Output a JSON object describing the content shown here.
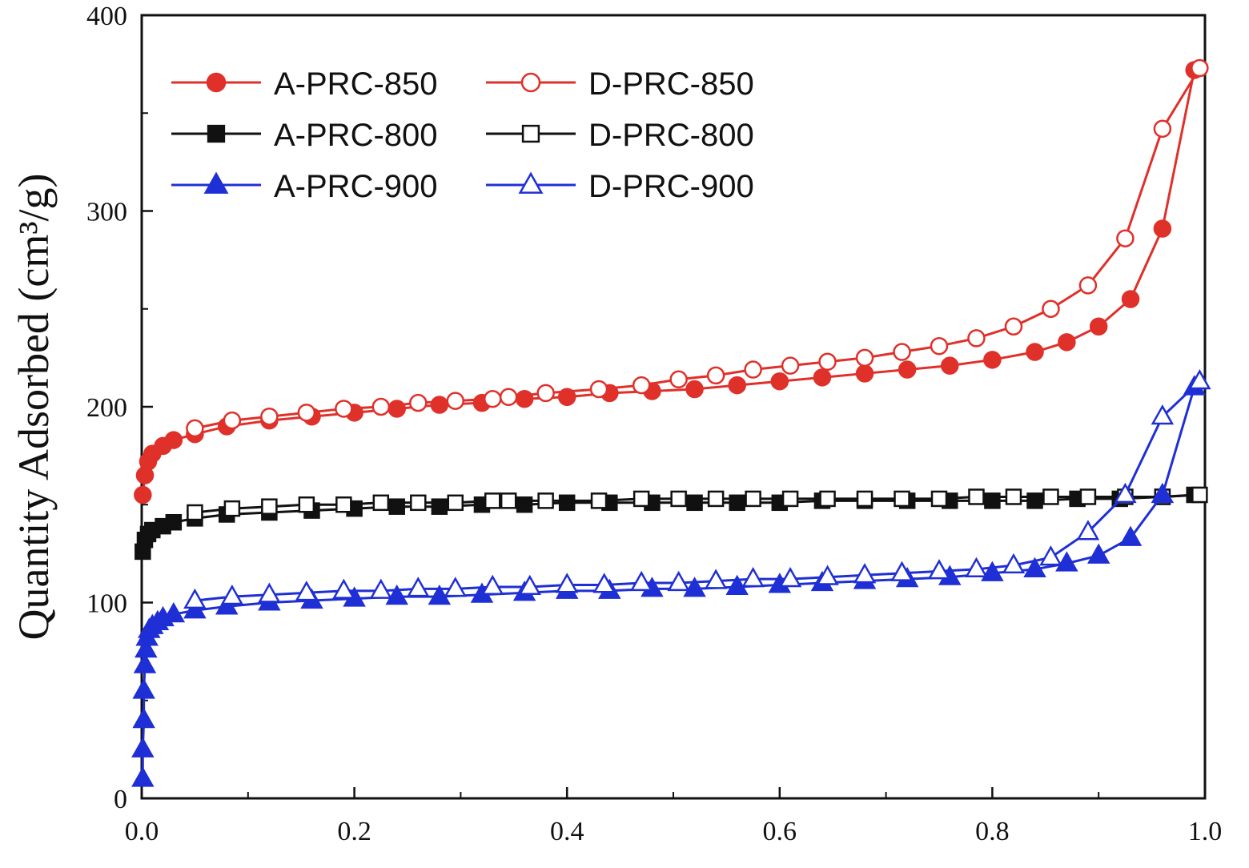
{
  "chart_data": {
    "type": "line",
    "title": "",
    "xlabel": "",
    "ylabel": "Quantity Adsorbed (cm³/g)",
    "xlim": [
      0.0,
      1.0
    ],
    "ylim": [
      0,
      400
    ],
    "x_ticks": [
      "0.0",
      "0.2",
      "0.4",
      "0.6",
      "0.8",
      "1.0"
    ],
    "y_ticks": [
      "0",
      "100",
      "200",
      "300",
      "400"
    ],
    "grid": false,
    "legend_position": "top-left",
    "legend_columns": 2,
    "series": [
      {
        "name": "A-PRC-850",
        "color": "#e0302a",
        "marker": "circle",
        "filled": true,
        "x": [
          0.001,
          0.003,
          0.006,
          0.01,
          0.02,
          0.03,
          0.05,
          0.08,
          0.12,
          0.16,
          0.2,
          0.24,
          0.28,
          0.32,
          0.36,
          0.4,
          0.44,
          0.48,
          0.52,
          0.56,
          0.6,
          0.64,
          0.68,
          0.72,
          0.76,
          0.8,
          0.84,
          0.87,
          0.9,
          0.93,
          0.96,
          0.99
        ],
        "y": [
          155,
          165,
          172,
          176,
          180,
          183,
          186,
          190,
          193,
          195,
          197,
          199,
          201,
          202,
          204,
          205,
          207,
          208,
          209,
          211,
          213,
          215,
          217,
          219,
          221,
          224,
          228,
          233,
          241,
          255,
          291,
          372
        ]
      },
      {
        "name": "D-PRC-850",
        "color": "#e0302a",
        "marker": "circle",
        "filled": false,
        "x": [
          0.05,
          0.085,
          0.12,
          0.155,
          0.19,
          0.225,
          0.26,
          0.295,
          0.33,
          0.345,
          0.38,
          0.43,
          0.47,
          0.505,
          0.54,
          0.575,
          0.61,
          0.645,
          0.68,
          0.715,
          0.75,
          0.785,
          0.82,
          0.855,
          0.89,
          0.925,
          0.96,
          0.995
        ],
        "y": [
          189,
          193,
          195,
          197,
          199,
          200,
          202,
          203,
          204,
          205,
          207,
          209,
          211,
          214,
          216,
          219,
          221,
          223,
          225,
          228,
          231,
          235,
          241,
          250,
          262,
          286,
          342,
          373
        ]
      },
      {
        "name": "A-PRC-800",
        "color": "#111111",
        "marker": "square",
        "filled": true,
        "x": [
          0.001,
          0.003,
          0.006,
          0.01,
          0.02,
          0.03,
          0.05,
          0.08,
          0.12,
          0.16,
          0.2,
          0.24,
          0.28,
          0.32,
          0.36,
          0.4,
          0.44,
          0.48,
          0.52,
          0.56,
          0.6,
          0.64,
          0.68,
          0.72,
          0.76,
          0.8,
          0.84,
          0.88,
          0.92,
          0.96,
          0.99
        ],
        "y": [
          126,
          132,
          135,
          137,
          139,
          141,
          143,
          145,
          146,
          147,
          148,
          149,
          149,
          150,
          150,
          151,
          151,
          151,
          151,
          151,
          151,
          152,
          152,
          152,
          152,
          152,
          152,
          153,
          153,
          154,
          155
        ]
      },
      {
        "name": "D-PRC-800",
        "color": "#111111",
        "marker": "square",
        "filled": false,
        "x": [
          0.05,
          0.085,
          0.12,
          0.155,
          0.19,
          0.225,
          0.26,
          0.295,
          0.33,
          0.345,
          0.38,
          0.43,
          0.47,
          0.505,
          0.54,
          0.575,
          0.61,
          0.645,
          0.68,
          0.715,
          0.75,
          0.785,
          0.82,
          0.855,
          0.89,
          0.925,
          0.96,
          0.995
        ],
        "y": [
          146,
          148,
          149,
          150,
          150,
          151,
          151,
          151,
          152,
          152,
          152,
          152,
          153,
          153,
          153,
          153,
          153,
          153,
          153,
          153,
          153,
          154,
          154,
          154,
          154,
          154,
          154,
          155
        ]
      },
      {
        "name": "A-PRC-900",
        "color": "#1f2fd6",
        "marker": "triangle",
        "filled": true,
        "x": [
          0.001,
          0.001,
          0.002,
          0.002,
          0.003,
          0.004,
          0.005,
          0.007,
          0.01,
          0.015,
          0.02,
          0.03,
          0.05,
          0.08,
          0.12,
          0.16,
          0.2,
          0.24,
          0.28,
          0.32,
          0.36,
          0.4,
          0.44,
          0.48,
          0.52,
          0.56,
          0.6,
          0.64,
          0.68,
          0.72,
          0.76,
          0.8,
          0.84,
          0.87,
          0.9,
          0.93,
          0.96,
          0.99
        ],
        "y": [
          10,
          25,
          40,
          55,
          68,
          76,
          82,
          86,
          88,
          90,
          92,
          94,
          96,
          98,
          100,
          101,
          102,
          103,
          103,
          104,
          105,
          106,
          106,
          107,
          107,
          108,
          109,
          110,
          111,
          112,
          113,
          115,
          117,
          120,
          124,
          133,
          155,
          210
        ]
      },
      {
        "name": "D-PRC-900",
        "color": "#1f2fd6",
        "marker": "triangle",
        "filled": false,
        "x": [
          0.05,
          0.085,
          0.12,
          0.155,
          0.19,
          0.225,
          0.26,
          0.295,
          0.33,
          0.365,
          0.4,
          0.435,
          0.47,
          0.505,
          0.54,
          0.575,
          0.61,
          0.645,
          0.68,
          0.715,
          0.75,
          0.785,
          0.82,
          0.855,
          0.89,
          0.925,
          0.96,
          0.995
        ],
        "y": [
          101,
          103,
          104,
          105,
          106,
          106,
          107,
          107,
          108,
          108,
          109,
          109,
          110,
          110,
          111,
          112,
          112,
          113,
          114,
          115,
          116,
          117,
          119,
          123,
          136,
          155,
          195,
          213
        ]
      }
    ]
  }
}
